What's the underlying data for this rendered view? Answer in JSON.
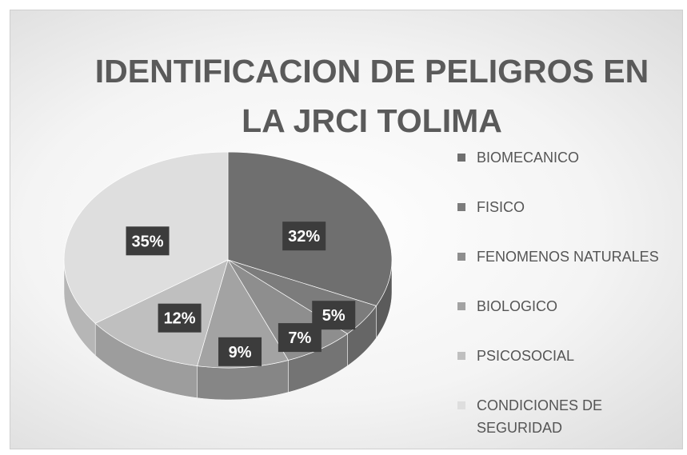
{
  "chart_data": {
    "type": "pie",
    "title": "IDENTIFICACION DE PELIGROS  EN LA JRCI TOLIMA",
    "categories": [
      "BIOMECANICO",
      "FISICO",
      "FENOMENOS NATURALES",
      "BIOLOGICO",
      "PSICOSOCIAL",
      "CONDICIONES DE SEGURIDAD"
    ],
    "values": [
      32,
      5,
      7,
      9,
      12,
      35
    ],
    "value_labels": [
      "32%",
      "5%",
      "7%",
      "9%",
      "12%",
      "35%"
    ],
    "colors": [
      "#6f6f6f",
      "#7c7c7c",
      "#8e8e8e",
      "#a3a3a3",
      "#bfbfbf",
      "#dedede"
    ],
    "legend": "right"
  }
}
